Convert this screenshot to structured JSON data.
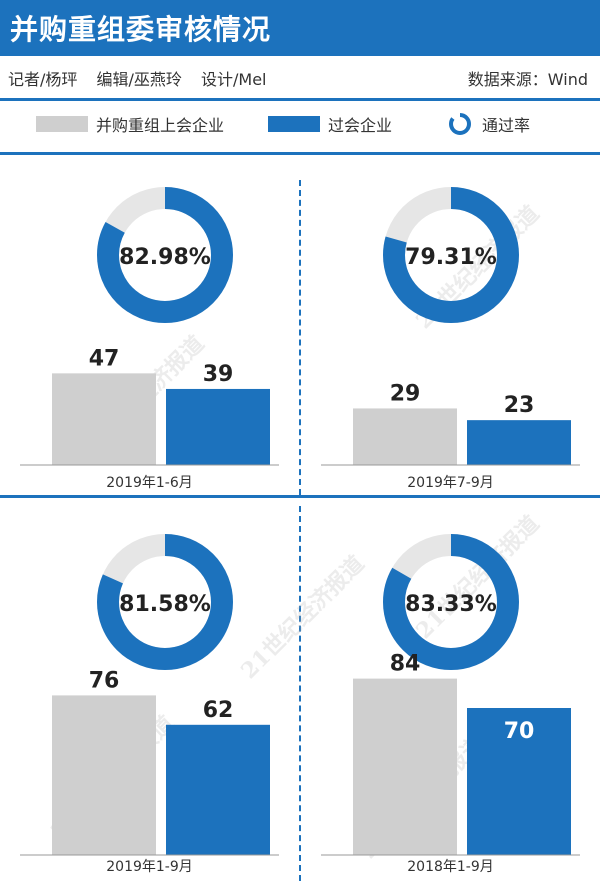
{
  "header": {
    "title": "并购重组委审核情况",
    "reporter": "记者/杨玶",
    "editor": "编辑/巫燕玲",
    "design": "设计/Mel",
    "source": "数据来源：Wind"
  },
  "legend": {
    "series1": "并购重组上会企业",
    "series2": "过会企业",
    "rate": "通过率"
  },
  "watermark": "21世纪经济报道",
  "colors": {
    "brand_blue": "#1c72bd",
    "gray_bar": "#cfcfcf",
    "ring_track": "#e6e6e6"
  },
  "chart_data": [
    {
      "type": "bar",
      "period": "2019年1-6月",
      "categories": [
        "并购重组上会企业",
        "过会企业"
      ],
      "values": [
        47,
        39
      ],
      "rate_label": "82.98%",
      "rate": 82.98,
      "ylim": [
        0,
        90
      ]
    },
    {
      "type": "bar",
      "period": "2019年7-9月",
      "categories": [
        "并购重组上会企业",
        "过会企业"
      ],
      "values": [
        29,
        23
      ],
      "rate_label": "79.31%",
      "rate": 79.31,
      "ylim": [
        0,
        90
      ]
    },
    {
      "type": "bar",
      "period": "2019年1-9月",
      "categories": [
        "并购重组上会企业",
        "过会企业"
      ],
      "values": [
        76,
        62
      ],
      "rate_label": "81.58%",
      "rate": 81.58,
      "ylim": [
        0,
        90
      ]
    },
    {
      "type": "bar",
      "period": "2018年1-9月",
      "categories": [
        "并购重组上会企业",
        "过会企业"
      ],
      "values": [
        84,
        70
      ],
      "rate_label": "83.33%",
      "rate": 83.33,
      "ylim": [
        0,
        90
      ]
    }
  ]
}
